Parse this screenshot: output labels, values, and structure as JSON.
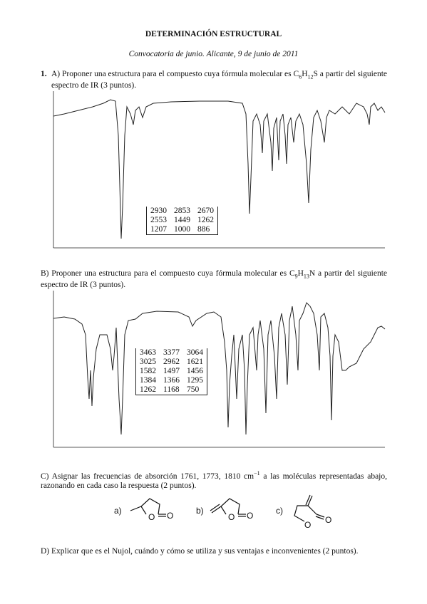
{
  "header": {
    "title": "DETERMINACIÓN ESTRUCTURAL",
    "subtitle": "Convocatoria de junio. Alicante, 9 de junio de 2011"
  },
  "questions": [
    {
      "number": "1.",
      "part": "A)",
      "before": "Proponer una estructura para el compuesto cuya fórmula molecular es ",
      "formula": [
        {
          "el": "C",
          "sub": "6"
        },
        {
          "el": "H",
          "sub": "12"
        },
        {
          "el": "S"
        }
      ],
      "after": " a partir del siguiente espectro de IR (3 puntos).",
      "peaks": [
        [
          2930,
          2853,
          2670
        ],
        [
          2553,
          1449,
          1262
        ],
        [
          1207,
          1000,
          886
        ]
      ]
    },
    {
      "part": "B)",
      "before": "Proponer una estructura para el compuesto cuya fórmula molecular es ",
      "formula": [
        {
          "el": "C",
          "sub": "9"
        },
        {
          "el": "H",
          "sub": "13"
        },
        {
          "el": "N"
        }
      ],
      "after": " a partir del siguiente espectro de IR (3 puntos).",
      "peaks": [
        [
          3463,
          3377,
          3064
        ],
        [
          3025,
          2962,
          1621
        ],
        [
          1582,
          1497,
          1456
        ],
        [
          1384,
          1366,
          1295
        ],
        [
          1262,
          1168,
          750
        ]
      ]
    },
    {
      "part": "C)",
      "before": "Asignar las frecuencias de absorción 1761, 1773, 1810 cm",
      "sup": "−1",
      "after": " a las moléculas representadas abajo, razonando en cada caso la respuesta (2 puntos).",
      "molecules": [
        {
          "label": "a)",
          "atoms": [
            "O",
            "O"
          ]
        },
        {
          "label": "b)",
          "atoms": [
            "O",
            "O"
          ]
        },
        {
          "label": "c)",
          "atoms": [
            "O",
            "O"
          ]
        }
      ]
    },
    {
      "part": "D)",
      "text": "Explicar que es el Nujol, cuándo y cómo se utiliza y sus ventajas e inconvenientes (2 puntos)."
    }
  ]
}
